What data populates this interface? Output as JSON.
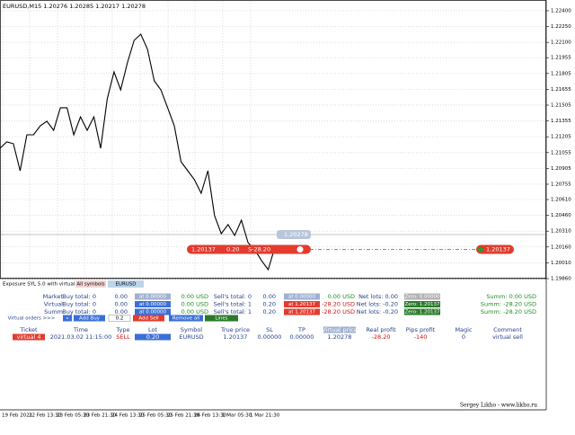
{
  "chart": {
    "header": "EURUSD,M15  1.20276 1.20285 1.20217 1.20278",
    "ylim": [
      1.1986,
      1.22502
    ],
    "price_ticks": [
      {
        "value": 1.224,
        "label": "1.22400"
      },
      {
        "value": 1.2225,
        "label": "1.22250"
      },
      {
        "value": 1.221,
        "label": "1.22100"
      },
      {
        "value": 1.21955,
        "label": "1.21955"
      },
      {
        "value": 1.21805,
        "label": "1.21805"
      },
      {
        "value": 1.21655,
        "label": "1.21655"
      },
      {
        "value": 1.21505,
        "label": "1.21505"
      },
      {
        "value": 1.21355,
        "label": "1.21355"
      },
      {
        "value": 1.21205,
        "label": "1.21205"
      },
      {
        "value": 1.21055,
        "label": "1.21055"
      },
      {
        "value": 1.20905,
        "label": "1.20905"
      },
      {
        "value": 1.20755,
        "label": "1.20755"
      },
      {
        "value": 1.2061,
        "label": "1.20610"
      },
      {
        "value": 1.2046,
        "label": "1.20460"
      },
      {
        "value": 1.2031,
        "label": "1.20310"
      },
      {
        "value": 1.2016,
        "label": "1.20160"
      },
      {
        "value": 1.2001,
        "label": "1.20010"
      },
      {
        "value": 1.1986,
        "label": "1.19860"
      }
    ],
    "time_labels": [
      "19 Feb 2021",
      "22 Feb 13:30",
      "23 Feb 05:30",
      "23 Feb 21:30",
      "24 Feb 13:30",
      "25 Feb 05:30",
      "25 Feb 21:30",
      "26 Feb 13:30",
      "1 Mar 05:30",
      "1 Mar 21:30"
    ],
    "price": [
      1.21096,
      1.21156,
      1.21139,
      1.20883,
      1.21224,
      1.21224,
      1.21309,
      1.21352,
      1.21266,
      1.2148,
      1.2148,
      1.21224,
      1.21394,
      1.21266,
      1.21394,
      1.21096,
      1.21565,
      1.2182,
      1.2165,
      1.21906,
      1.22119,
      1.22178,
      1.22034,
      1.21735,
      1.2165,
      1.2148,
      1.21309,
      1.20968,
      1.20883,
      1.20798,
      1.2067,
      1.20883,
      1.20457,
      1.20286,
      1.20372,
      1.20269,
      1.20414,
      1.20201,
      1.20133,
      1.20031,
      1.19945,
      1.20158
    ],
    "current_price": {
      "value": 1.20278,
      "label": "1.20278"
    },
    "order_line": {
      "value": 1.20137,
      "label": "1.20137",
      "lot": "0.20",
      "profit": "S-28.20"
    },
    "right_label": "1.20137"
  },
  "panel": {
    "tabs": [
      "Exposure SYL 5.0 with virtual orders",
      "All symbols",
      "EURUSD"
    ],
    "summary_rows": [
      [
        "Market",
        "Buy total: 0",
        "0.00",
        "at 0.00000",
        "0.00 USD",
        "Sell's total: 0",
        "0.00",
        "at 0.00000",
        "0.00 USD",
        "Net lots: 0.00",
        "Zero: 0.00000",
        "Summ: 0.00 USD"
      ],
      [
        "Virtual",
        "Buy total: 0",
        "0.00",
        "at 0.00000",
        "0.00 USD",
        "Sell's total: 1",
        "0.20",
        "at 1.20137",
        "-28.20 USD",
        "Net lots: -0.20",
        "Zero: 1.20137",
        "Summ: -28.20 USD"
      ],
      [
        "Summ",
        "Buy total: 0",
        "0.00",
        "at 0.00000",
        "0.00 USD",
        "Sell's total: 1",
        "0.20",
        "at 1.20137",
        "-28.20 USD",
        "Net lots: -0.20",
        "Zero: 1.20137",
        "Summ: -28.20 USD"
      ]
    ],
    "controls": [
      "Virtual orders >>>",
      "«",
      "Add Buy",
      "0.2",
      "Add Sell",
      "Remove all",
      "Lines"
    ],
    "table_header": [
      "Ticket",
      "Time",
      "Type",
      "Lot",
      "Symbol",
      "True price",
      "SL",
      "TP",
      "Virtual price",
      "Real profit",
      "Pips profit",
      "Magic",
      "Comment"
    ],
    "table_row": [
      "virtual 4",
      "2021.03.02 11:15:00",
      "SELL",
      "0.20",
      "EURUSD",
      "1.20137",
      "0.00000",
      "0.00000",
      "1.20278",
      "-28.20",
      "-140",
      "0",
      "virtual sell"
    ],
    "footer": "Sergey Likho - www.likho.ru"
  }
}
